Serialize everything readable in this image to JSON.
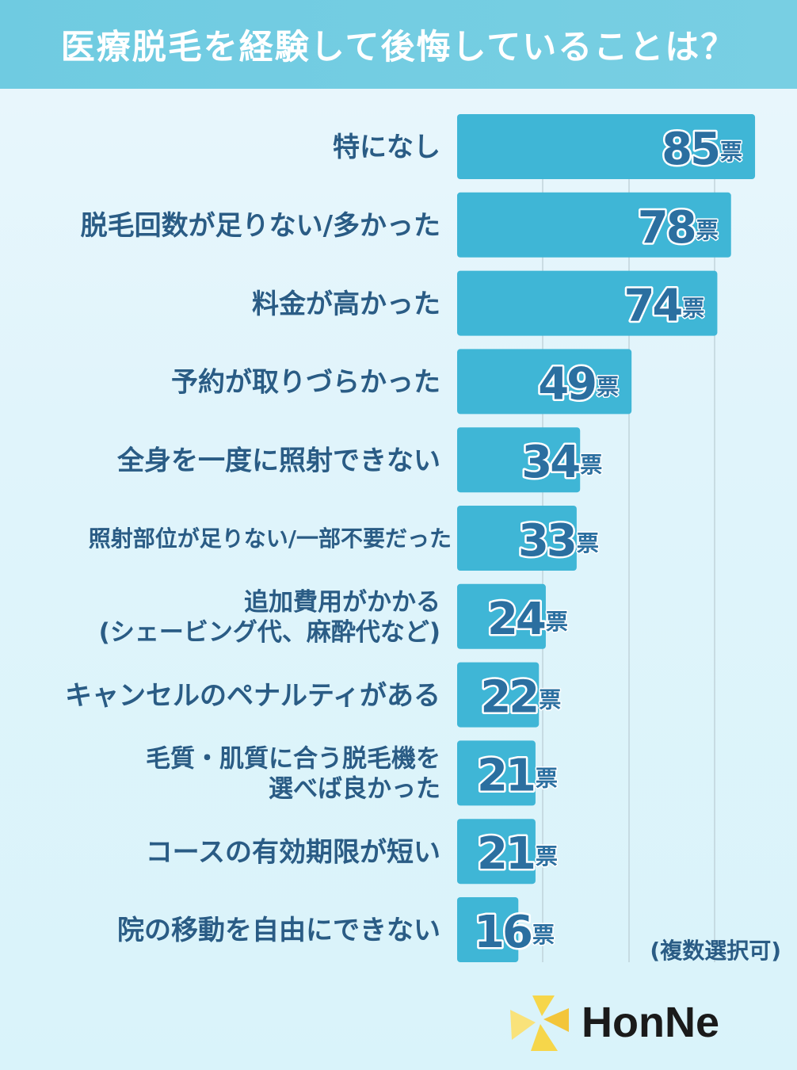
{
  "title": "医療脱毛を経験して後悔していることは？",
  "note": "(複数選択可)",
  "brand": "HonNe",
  "colors": {
    "bar": "#3fb6d6",
    "label": "#2a5c85",
    "title_bg": "#72cde2"
  },
  "chart_data": {
    "type": "bar",
    "orientation": "horizontal",
    "unit": "票",
    "categories": [
      [
        "特になし"
      ],
      [
        "脱毛回数が足りない/多かった"
      ],
      [
        "料金が高かった"
      ],
      [
        "予約が取りづらかった"
      ],
      [
        "全身を一度に照射できない"
      ],
      [
        "照射部位が足りない/一部不要だった"
      ],
      [
        "追加費用がかかる",
        "(シェービング代、麻酔代など)"
      ],
      [
        "キャンセルのペナルティがある"
      ],
      [
        "毛質・肌質に合う脱毛機を",
        "選べば良かった"
      ],
      [
        "コースの有効期限が短い"
      ],
      [
        "院の移動を自由にできない"
      ]
    ],
    "values": [
      85,
      78,
      74,
      49,
      34,
      33,
      24,
      22,
      21,
      21,
      16
    ],
    "xlim": [
      0,
      90
    ],
    "grid": true
  }
}
